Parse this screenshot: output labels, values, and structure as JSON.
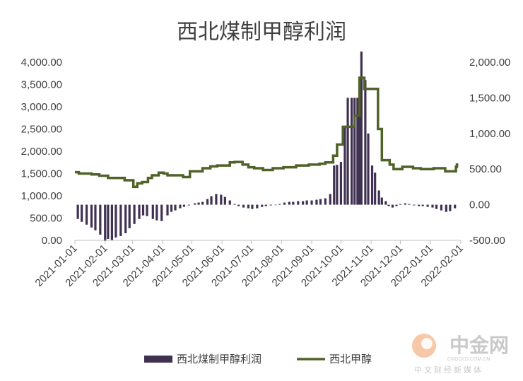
{
  "chart_data": {
    "type": "bar+line",
    "title": "西北煤制甲醇利润",
    "colors": {
      "bar": "#403152",
      "line": "#4f6228",
      "axis": "#bfbfbf",
      "text": "#404040",
      "watermark": "#c9c9c9",
      "logo": "#f4b183"
    },
    "left_axis": {
      "ylim": [
        0,
        4000
      ],
      "ticks": [
        "0.00",
        "500.00",
        "1,000.00",
        "1,500.00",
        "2,000.00",
        "2,500.00",
        "3,000.00",
        "3,500.00",
        "4,000.00"
      ]
    },
    "right_axis": {
      "ylim": [
        -500,
        2000
      ],
      "ticks": [
        "-500.00",
        "0.00",
        "500.00",
        "1,000.00",
        "1,500.00",
        "2,000.00"
      ]
    },
    "x_axis": {
      "range": [
        "2021-01-01",
        "2022-02-01"
      ],
      "ticks": [
        "2021-01-01",
        "2021-02-01",
        "2021-03-01",
        "2021-04-01",
        "2021-05-01",
        "2021-06-01",
        "2021-07-01",
        "2021-08-01",
        "2021-09-01",
        "2021-10-01",
        "2021-11-01",
        "2021-12-01",
        "2022-01-01",
        "2022-02-01"
      ]
    },
    "legend": {
      "placement": "bottom",
      "items": [
        {
          "label": "西北煤制甲醇利润",
          "kind": "bar"
        },
        {
          "label": "西北甲醇",
          "kind": "line"
        }
      ]
    },
    "series": [
      {
        "name": "西北煤制甲醇利润",
        "axis": "right",
        "kind": "bar",
        "x": [
          "2021-01-04",
          "2021-01-08",
          "2021-01-13",
          "2021-01-18",
          "2021-01-22",
          "2021-01-27",
          "2021-02-01",
          "2021-02-04",
          "2021-02-08",
          "2021-02-12",
          "2021-02-17",
          "2021-02-22",
          "2021-02-26",
          "2021-03-03",
          "2021-03-08",
          "2021-03-12",
          "2021-03-16",
          "2021-03-22",
          "2021-03-26",
          "2021-03-31",
          "2021-04-06",
          "2021-04-10",
          "2021-04-14",
          "2021-04-19",
          "2021-04-23",
          "2021-04-28",
          "2021-05-04",
          "2021-05-08",
          "2021-05-12",
          "2021-05-17",
          "2021-05-21",
          "2021-05-26",
          "2021-05-31",
          "2021-06-04",
          "2021-06-09",
          "2021-06-14",
          "2021-06-18",
          "2021-06-23",
          "2021-06-28",
          "2021-07-02",
          "2021-07-07",
          "2021-07-12",
          "2021-07-16",
          "2021-07-21",
          "2021-07-26",
          "2021-07-30",
          "2021-08-04",
          "2021-08-09",
          "2021-08-13",
          "2021-08-18",
          "2021-08-23",
          "2021-08-27",
          "2021-09-01",
          "2021-09-06",
          "2021-09-10",
          "2021-09-15",
          "2021-09-20",
          "2021-09-24",
          "2021-09-27",
          "2021-10-01",
          "2021-10-05",
          "2021-10-08",
          "2021-10-12",
          "2021-10-15",
          "2021-10-18",
          "2021-10-20",
          "2021-10-22",
          "2021-10-26",
          "2021-10-29",
          "2021-11-02",
          "2021-11-05",
          "2021-11-09",
          "2021-11-12",
          "2021-11-16",
          "2021-11-19",
          "2021-11-23",
          "2021-11-27",
          "2021-12-01",
          "2021-12-06",
          "2021-12-10",
          "2021-12-15",
          "2021-12-20",
          "2021-12-24",
          "2021-12-29",
          "2022-01-03",
          "2022-01-07",
          "2022-01-12",
          "2022-01-17",
          "2022-01-21",
          "2022-01-26"
        ],
        "values": [
          -200,
          -240,
          -280,
          -320,
          -360,
          -420,
          -510,
          -480,
          -500,
          -460,
          -440,
          -400,
          -330,
          -270,
          -200,
          -150,
          -160,
          -200,
          -220,
          -230,
          -150,
          -100,
          -80,
          -50,
          -30,
          -10,
          20,
          30,
          40,
          80,
          120,
          150,
          140,
          110,
          60,
          10,
          -20,
          -40,
          -50,
          -60,
          -50,
          -30,
          -20,
          -10,
          -5,
          10,
          30,
          40,
          40,
          50,
          50,
          60,
          60,
          70,
          80,
          90,
          150,
          550,
          560,
          600,
          1100,
          1500,
          1500,
          1500,
          1500,
          1700,
          2150,
          1750,
          1000,
          550,
          450,
          200,
          100,
          50,
          -20,
          -40,
          -20,
          10,
          20,
          10,
          -10,
          -20,
          -20,
          -30,
          -40,
          -60,
          -80,
          -100,
          -90,
          -50
        ]
      },
      {
        "name": "西北甲醇",
        "axis": "left",
        "kind": "step-line",
        "x": [
          "2021-01-01",
          "2021-01-05",
          "2021-01-18",
          "2021-01-26",
          "2021-02-04",
          "2021-02-21",
          "2021-03-02",
          "2021-03-06",
          "2021-03-11",
          "2021-03-17",
          "2021-03-21",
          "2021-03-28",
          "2021-04-02",
          "2021-04-06",
          "2021-04-22",
          "2021-04-29",
          "2021-05-12",
          "2021-05-20",
          "2021-05-27",
          "2021-06-09",
          "2021-06-14",
          "2021-06-22",
          "2021-06-28",
          "2021-07-04",
          "2021-07-13",
          "2021-07-23",
          "2021-08-03",
          "2021-08-16",
          "2021-08-29",
          "2021-09-09",
          "2021-09-15",
          "2021-09-23",
          "2021-09-27",
          "2021-10-03",
          "2021-10-15",
          "2021-10-20",
          "2021-10-25",
          "2021-11-08",
          "2021-11-12",
          "2021-11-20",
          "2021-11-24",
          "2021-12-03",
          "2021-12-14",
          "2021-12-22",
          "2022-01-04",
          "2022-01-16",
          "2022-01-21",
          "2022-01-27",
          "2022-01-28"
        ],
        "values": [
          1530,
          1500,
          1480,
          1450,
          1400,
          1350,
          1200,
          1280,
          1310,
          1400,
          1460,
          1520,
          1500,
          1460,
          1420,
          1550,
          1620,
          1660,
          1680,
          1750,
          1760,
          1700,
          1640,
          1620,
          1580,
          1620,
          1640,
          1680,
          1700,
          1720,
          1750,
          1900,
          2150,
          2550,
          2800,
          3650,
          3400,
          2500,
          1800,
          1700,
          1600,
          1650,
          1620,
          1600,
          1620,
          1550,
          1550,
          1650,
          1700
        ]
      }
    ]
  },
  "watermark": {
    "brand": "中金网",
    "domain": "CNGOLD.COM.CN",
    "slogan": "中文财经新媒体"
  }
}
